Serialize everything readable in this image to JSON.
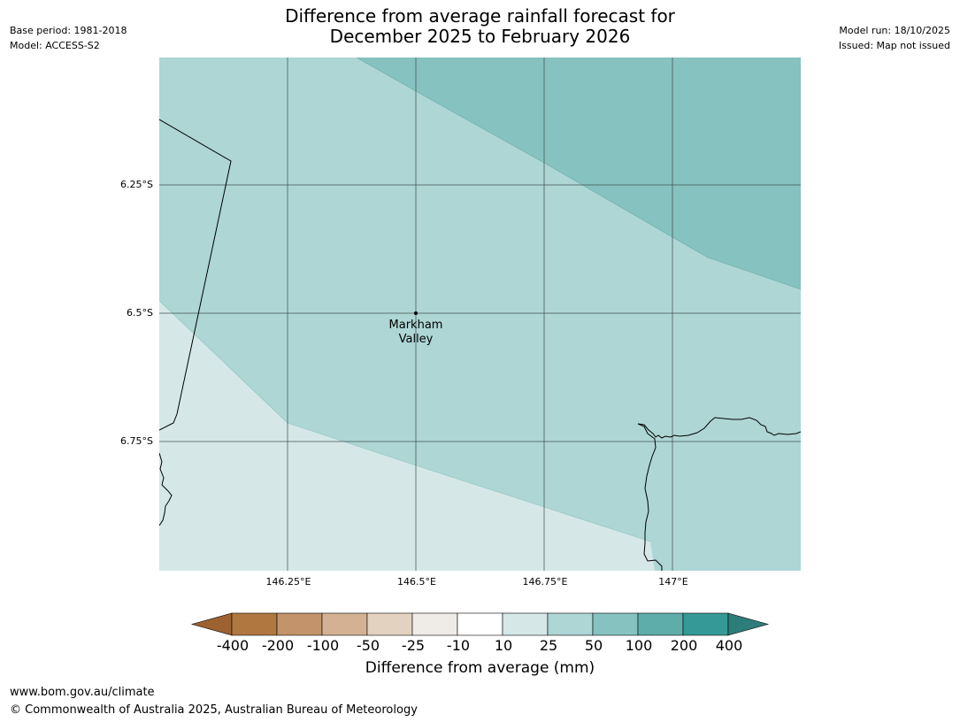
{
  "title": {
    "line1": "Difference from average rainfall forecast for",
    "line2": "December 2025 to February 2026"
  },
  "meta_left": {
    "base_period": "Base period: 1981-2018",
    "model": "Model: ACCESS-S2"
  },
  "meta_right": {
    "model_run": "Model run: 18/10/2025",
    "issued": "Issued: Map not issued"
  },
  "map": {
    "lat_labels": [
      "6.25°S",
      "6.5°S",
      "6.75°S"
    ],
    "lon_labels": [
      "146.25°E",
      "146.5°E",
      "146.75°E",
      "147°E"
    ],
    "place": {
      "name_line1": "Markham",
      "name_line2": "Valley"
    },
    "fill_colors": {
      "light": "#d5e8e7",
      "mid": "#add6d5",
      "dark": "#86c2c0"
    }
  },
  "colorbar": {
    "title": "Difference from average (mm)",
    "ticks": [
      "-400",
      "-200",
      "-100",
      "-50",
      "-25",
      "-10",
      "10",
      "25",
      "50",
      "100",
      "200",
      "400"
    ],
    "colors": [
      "#9d6230",
      "#b07840",
      "#c3936b",
      "#d4b193",
      "#e4d2c1",
      "#efebe7",
      "#ffffff",
      "#d5e8e7",
      "#add6d5",
      "#86c2c0",
      "#5eadab",
      "#359a97",
      "#2d7d7a"
    ]
  },
  "footer": {
    "url": "www.bom.gov.au/climate",
    "copyright": "© Commonwealth of Australia 2025, Australian Bureau of Meteorology"
  }
}
